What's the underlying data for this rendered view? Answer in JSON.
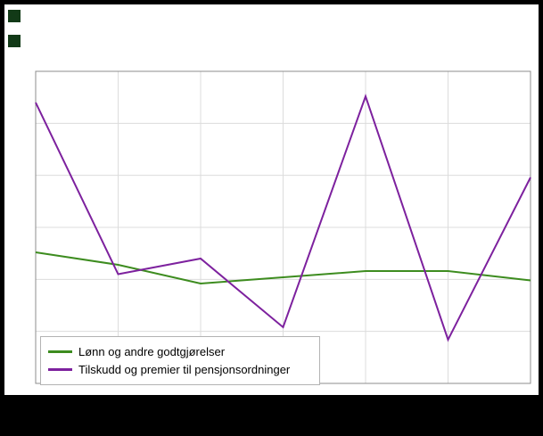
{
  "figure": {
    "background": "#ffffff",
    "outer_background": "#000000",
    "logo_color": "#123a17"
  },
  "chart_data": {
    "type": "line",
    "title": "",
    "xlabel": "",
    "ylabel": "",
    "x": [
      1,
      2,
      3,
      4,
      5,
      6,
      7
    ],
    "x_tick_labels_visible": false,
    "y_tick_labels_visible": false,
    "ylim": [
      0,
      100
    ],
    "grid": true,
    "grid_color": "#dcdcdc",
    "frame_color": "#8c8c8c",
    "legend_position": "bottom-left-inside",
    "series": [
      {
        "name": "Lønn og andre godtgjørelser",
        "color": "#3d8c1f",
        "values": [
          42,
          38,
          32,
          34,
          36,
          36,
          33
        ]
      },
      {
        "name": "Tilskudd og premier til pensjonsordninger",
        "color": "#7d219e",
        "values": [
          90,
          35,
          40,
          18,
          92,
          14,
          66
        ]
      }
    ]
  }
}
